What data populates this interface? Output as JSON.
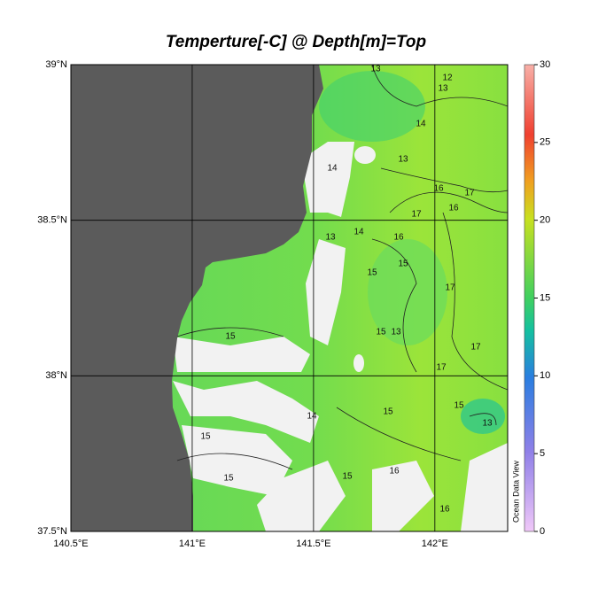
{
  "chart_data": {
    "type": "map",
    "title": "Temperture[-C] @ Depth[m]=Top",
    "xlim": [
      140.5,
      142.3
    ],
    "ylim": [
      37.5,
      39
    ],
    "xticks": [
      {
        "value": 140.5,
        "label": "140.5°E"
      },
      {
        "value": 141,
        "label": "141°E"
      },
      {
        "value": 141.5,
        "label": "141.5°E"
      },
      {
        "value": 142,
        "label": "142°E"
      }
    ],
    "yticks": [
      {
        "value": 37.5,
        "label": "37.5°N"
      },
      {
        "value": 38,
        "label": "38°N"
      },
      {
        "value": 38.5,
        "label": "38.5°N"
      },
      {
        "value": 39,
        "label": "39°N"
      }
    ],
    "grid": true,
    "colorbar": {
      "lim": [
        0,
        30
      ],
      "ticks": [
        0,
        5,
        10,
        15,
        20,
        25,
        30
      ]
    },
    "contour_labels": [
      13,
      12,
      13,
      14,
      13,
      16,
      17,
      16,
      17,
      14,
      13,
      14,
      15,
      16,
      15,
      17,
      15,
      15,
      13,
      17,
      17,
      15,
      14,
      15,
      16,
      15,
      15,
      16,
      15,
      13
    ],
    "watermark": "Ocean Data View"
  }
}
